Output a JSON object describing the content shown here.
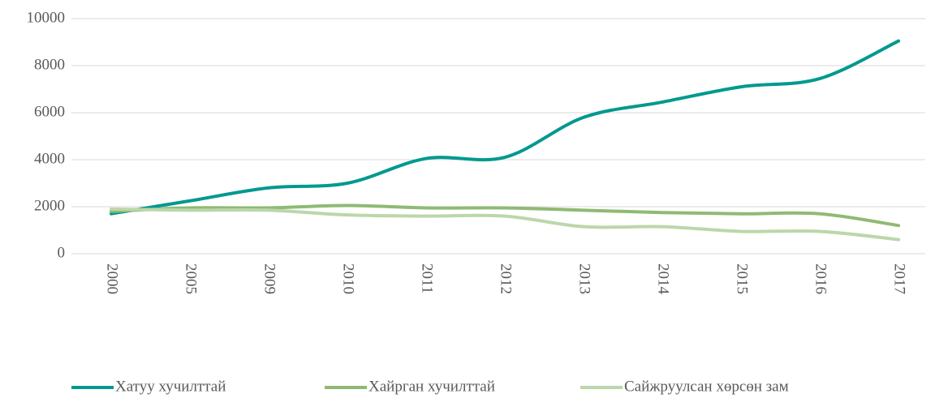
{
  "chart_data": {
    "type": "line",
    "categories": [
      "2000",
      "2005",
      "2009",
      "2010",
      "2011",
      "2012",
      "2013",
      "2014",
      "2015",
      "2016",
      "2017"
    ],
    "series": [
      {
        "name": "Хатуу хучилттай",
        "color": "#00998f",
        "values": [
          1700,
          2250,
          2800,
          3000,
          4050,
          4100,
          5800,
          6450,
          7100,
          7450,
          9050
        ]
      },
      {
        "name": "Хайрган хучилттай",
        "color": "#8fba74",
        "values": [
          1800,
          1950,
          1950,
          2050,
          1950,
          1950,
          1850,
          1750,
          1700,
          1700,
          1200
        ]
      },
      {
        "name": "Сайжруулсан хөрсөн зам",
        "color": "#bcd7ab",
        "values": [
          1900,
          1850,
          1850,
          1650,
          1600,
          1600,
          1150,
          1150,
          950,
          950,
          600
        ]
      }
    ],
    "ylim": [
      0,
      10000
    ],
    "yticks": [
      0,
      2000,
      4000,
      6000,
      8000,
      10000
    ],
    "grid": true,
    "legend": "bottom"
  }
}
